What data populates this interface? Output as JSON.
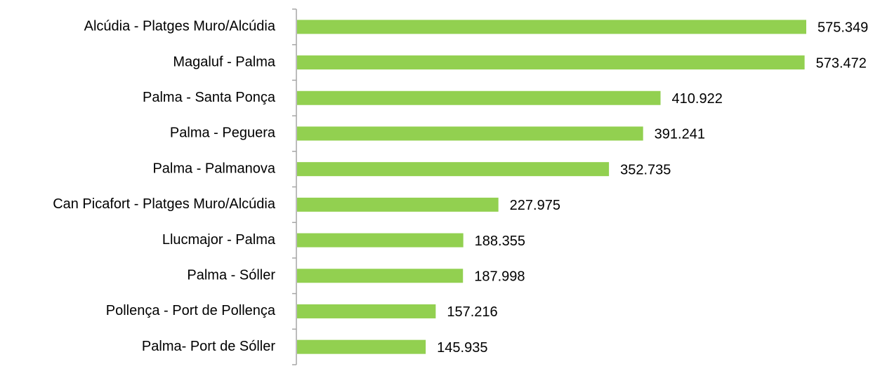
{
  "chart_data": {
    "type": "bar",
    "orientation": "horizontal",
    "categories": [
      "Alcúdia - Platges Muro/Alcúdia",
      "Magaluf - Palma",
      "Palma - Santa Ponça",
      "Palma - Peguera",
      "Palma - Palmanova",
      "Can Picafort - Platges Muro/Alcúdia",
      "Llucmajor - Palma",
      "Palma - Sóller",
      "Pollença - Port de Pollença",
      "Palma- Port de Sóller"
    ],
    "values": [
      575349,
      573472,
      410922,
      391241,
      352735,
      227975,
      188355,
      187998,
      157216,
      145935
    ],
    "value_labels": [
      "575.349",
      "573.472",
      "410.922",
      "391.241",
      "352.735",
      "227.975",
      "188.355",
      "187.998",
      "157.216",
      "145.935"
    ],
    "color": "#92d050"
  }
}
